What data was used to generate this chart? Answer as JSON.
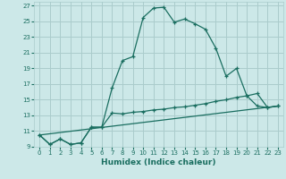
{
  "xlabel": "Humidex (Indice chaleur)",
  "bg_color": "#cce8e8",
  "grid_color": "#aacccc",
  "line_color": "#1a6e60",
  "xlim": [
    -0.5,
    23.5
  ],
  "ylim": [
    9,
    27.5
  ],
  "xticks": [
    0,
    1,
    2,
    3,
    4,
    5,
    6,
    7,
    8,
    9,
    10,
    11,
    12,
    13,
    14,
    15,
    16,
    17,
    18,
    19,
    20,
    21,
    22,
    23
  ],
  "yticks": [
    9,
    11,
    13,
    15,
    17,
    19,
    21,
    23,
    25,
    27
  ],
  "line1_x": [
    0,
    1,
    2,
    3,
    4,
    5,
    6,
    7,
    8,
    9,
    10,
    11,
    12,
    13,
    14,
    15,
    16,
    17,
    18,
    19,
    20,
    21,
    22,
    23
  ],
  "line1_y": [
    10.5,
    9.3,
    10.0,
    9.3,
    9.5,
    11.5,
    11.5,
    16.5,
    20.0,
    20.5,
    25.5,
    26.7,
    26.8,
    24.9,
    25.3,
    24.7,
    24.0,
    21.6,
    18.0,
    19.0,
    15.5,
    14.2,
    14.0,
    14.2
  ],
  "line2_x": [
    0,
    1,
    2,
    3,
    4,
    5,
    6,
    7,
    8,
    9,
    10,
    11,
    12,
    13,
    14,
    15,
    16,
    17,
    18,
    19,
    20,
    21,
    22,
    23
  ],
  "line2_y": [
    10.5,
    9.3,
    10.0,
    9.3,
    9.5,
    11.5,
    11.5,
    13.3,
    13.2,
    13.4,
    13.5,
    13.7,
    13.8,
    14.0,
    14.1,
    14.3,
    14.5,
    14.8,
    15.0,
    15.3,
    15.5,
    15.8,
    14.0,
    14.2
  ],
  "line3_x": [
    0,
    23
  ],
  "line3_y": [
    10.5,
    14.2
  ]
}
